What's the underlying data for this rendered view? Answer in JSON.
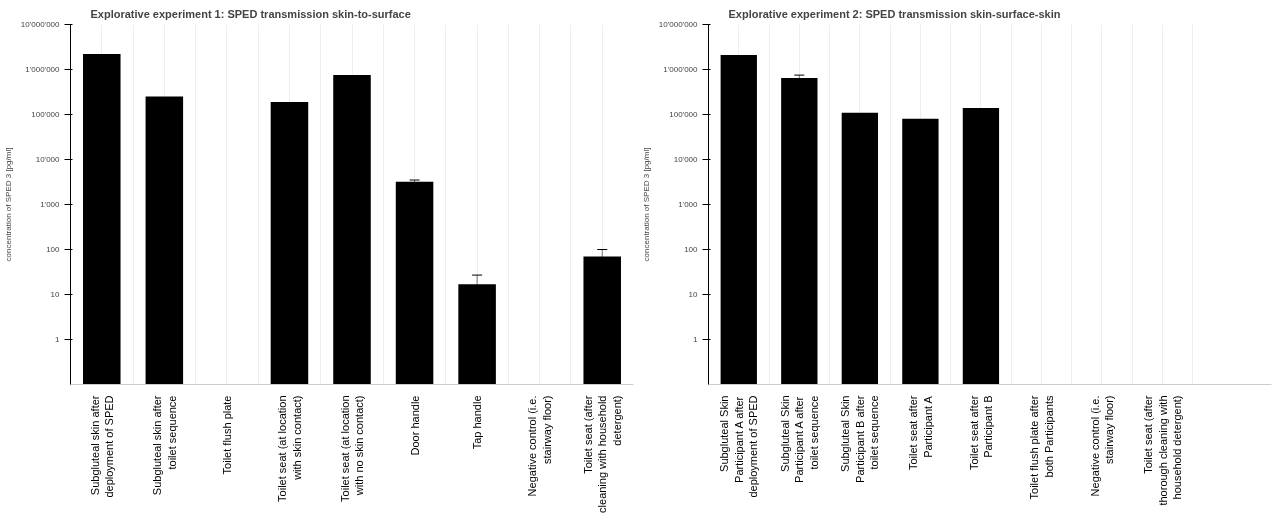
{
  "chart_data": [
    {
      "type": "bar",
      "title": "Explorative experiment 1: SPED transmission skin-to-surface",
      "ylabel": "concentration of SPED 3 [pg/ml]",
      "categories": [
        "Subgluteal skin after deployment of SPED",
        "Subgluteal skin after toilet sequence",
        "Toilet flush plate",
        "Toilet seat (at location with skin contact)",
        "Toilet seat (at location with no skin contact)",
        "Door handle",
        "Tap handle",
        "Negative control (i.e. stairway floor)",
        "Toilet seat (after cleaning with household detergent)"
      ],
      "series": [
        {
          "color": "#000000",
          "values": [
            2200000,
            250000,
            null,
            190000,
            750000,
            3200,
            17,
            null,
            70
          ],
          "errors": [
            null,
            null,
            null,
            null,
            null,
            300,
            10,
            null,
            30
          ]
        }
      ],
      "log": true,
      "ylim": [
        0.1,
        10000000
      ],
      "yticks": [
        1,
        10,
        100,
        {
          "value": 1000,
          "label": "1'000"
        },
        {
          "value": 10000,
          "label": "10'000"
        },
        {
          "value": 100000,
          "label": "100'000"
        },
        {
          "value": 1000000,
          "label": "1'000'000"
        },
        {
          "value": 10000000,
          "label": "10'000'000"
        }
      ],
      "grid": "x"
    },
    {
      "type": "bar",
      "title": "Explorative experiment 2: SPED transmission skin-surface-skin",
      "ylabel": "concentration of SPED 3 [pg/ml]",
      "categories": [
        "Subgluteal Skin Participant A after deployment of SPED",
        "Subgluteal Skin Participant A after toilet sequence",
        "Subgluteal Skin Participant B after toilet sequence",
        "Toilet seat after Participant A",
        "Toilet seat after Participant B",
        "Toilet flush plate after both Participants",
        "Negative control (i.e. stairway floor)",
        "Toilet seat (after thorough cleaning with household detergent)"
      ],
      "series": [
        {
          "color": "#000000",
          "values": [
            2100000,
            650000,
            110000,
            80000,
            140000,
            null,
            null,
            null
          ],
          "errors": [
            null,
            100000,
            null,
            null,
            null,
            null,
            null,
            null
          ]
        }
      ],
      "log": true,
      "ylim": [
        0.1,
        10000000
      ],
      "yticks": [
        1,
        10,
        100,
        {
          "value": 1000,
          "label": "1'000"
        },
        {
          "value": 10000,
          "label": "10'000"
        },
        {
          "value": 100000,
          "label": "100'000"
        },
        {
          "value": 1000000,
          "label": "1'000'000"
        },
        {
          "value": 10000000,
          "label": "10'000'000"
        }
      ],
      "grid": "x"
    }
  ]
}
